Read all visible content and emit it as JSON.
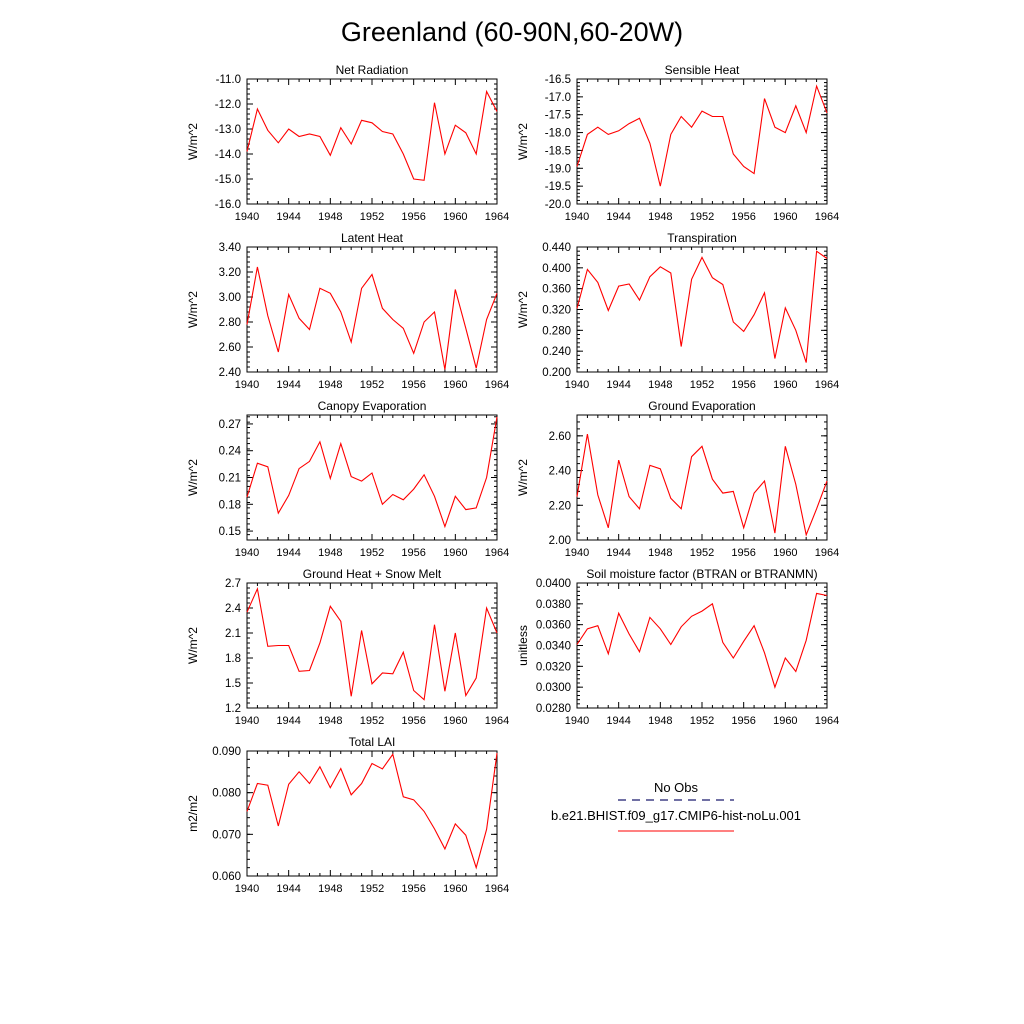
{
  "title": "Greenland (60-90N,60-20W)",
  "colors": {
    "series": "#ff0000",
    "obs": "#1a1a6e",
    "axis": "#000000",
    "background": "#ffffff"
  },
  "x_tick_labels": [
    "1940",
    "1944",
    "1948",
    "1952",
    "1956",
    "1960",
    "1964"
  ],
  "legend": {
    "obs_label": "No Obs",
    "model_label": "b.e21.BHIST.f09_g17.CMIP6-hist-noLu.001"
  },
  "chart_data": [
    {
      "type": "line",
      "title": "Net Radiation",
      "ylabel": "W/m^2",
      "xlim": [
        1940,
        1964
      ],
      "ylim": [
        -16.0,
        -11.0
      ],
      "ytick_labels": [
        "-16.0",
        "-15.0",
        "-14.0",
        "-13.0",
        "-12.0",
        "-11.0"
      ],
      "ytick_values": [
        -16.0,
        -15.0,
        -14.0,
        -13.0,
        -12.0,
        -11.0
      ],
      "series": [
        {
          "x": [
            1940,
            1941,
            1942,
            1943,
            1944,
            1945,
            1946,
            1947,
            1948,
            1949,
            1950,
            1951,
            1952,
            1953,
            1954,
            1955,
            1956,
            1957,
            1958,
            1959,
            1960,
            1961,
            1962,
            1963,
            1964
          ],
          "values": [
            -13.9,
            -12.2,
            -13.05,
            -13.55,
            -13.0,
            -13.3,
            -13.2,
            -13.3,
            -14.05,
            -12.95,
            -13.6,
            -12.65,
            -12.75,
            -13.1,
            -13.2,
            -14.0,
            -15.0,
            -15.05,
            -11.95,
            -14.0,
            -12.85,
            -13.15,
            -14.0,
            -11.5,
            -12.3
          ]
        }
      ]
    },
    {
      "type": "line",
      "title": "Sensible Heat",
      "ylabel": "W/m^2",
      "xlim": [
        1940,
        1964
      ],
      "ylim": [
        -20.0,
        -16.5
      ],
      "ytick_labels": [
        "-20.0",
        "-19.5",
        "-19.0",
        "-18.5",
        "-18.0",
        "-17.5",
        "-17.0",
        "-16.5"
      ],
      "ytick_values": [
        -20.0,
        -19.5,
        -19.0,
        -18.5,
        -18.0,
        -17.5,
        -17.0,
        -16.5
      ],
      "series": [
        {
          "x": [
            1940,
            1941,
            1942,
            1943,
            1944,
            1945,
            1946,
            1947,
            1948,
            1949,
            1950,
            1951,
            1952,
            1953,
            1954,
            1955,
            1956,
            1957,
            1958,
            1959,
            1960,
            1961,
            1962,
            1963,
            1964
          ],
          "values": [
            -18.95,
            -18.05,
            -17.85,
            -18.05,
            -17.95,
            -17.75,
            -17.6,
            -18.3,
            -19.5,
            -18.05,
            -17.55,
            -17.85,
            -17.4,
            -17.55,
            -17.55,
            -18.6,
            -18.95,
            -19.15,
            -17.05,
            -17.85,
            -18.0,
            -17.25,
            -18.0,
            -16.7,
            -17.45
          ]
        }
      ]
    },
    {
      "type": "line",
      "title": "Latent Heat",
      "ylabel": "W/m^2",
      "xlim": [
        1940,
        1964
      ],
      "ylim": [
        2.4,
        3.4
      ],
      "ytick_labels": [
        "2.40",
        "2.60",
        "2.80",
        "3.00",
        "3.20",
        "3.40"
      ],
      "ytick_values": [
        2.4,
        2.6,
        2.8,
        3.0,
        3.2,
        3.4
      ],
      "series": [
        {
          "x": [
            1940,
            1941,
            1942,
            1943,
            1944,
            1945,
            1946,
            1947,
            1948,
            1949,
            1950,
            1951,
            1952,
            1953,
            1954,
            1955,
            1956,
            1957,
            1958,
            1959,
            1960,
            1961,
            1962,
            1963,
            1964
          ],
          "values": [
            2.78,
            3.24,
            2.85,
            2.56,
            3.02,
            2.83,
            2.74,
            3.07,
            3.03,
            2.88,
            2.64,
            3.07,
            3.18,
            2.91,
            2.82,
            2.75,
            2.55,
            2.8,
            2.88,
            2.42,
            3.06,
            2.75,
            2.43,
            2.82,
            3.03
          ]
        }
      ]
    },
    {
      "type": "line",
      "title": "Transpiration",
      "ylabel": "W/m^2",
      "xlim": [
        1940,
        1964
      ],
      "ylim": [
        0.2,
        0.44
      ],
      "ytick_labels": [
        "0.200",
        "0.240",
        "0.280",
        "0.320",
        "0.360",
        "0.400",
        "0.440"
      ],
      "ytick_values": [
        0.2,
        0.24,
        0.28,
        0.32,
        0.36,
        0.4,
        0.44
      ],
      "series": [
        {
          "x": [
            1940,
            1941,
            1942,
            1943,
            1944,
            1945,
            1946,
            1947,
            1948,
            1949,
            1950,
            1951,
            1952,
            1953,
            1954,
            1955,
            1956,
            1957,
            1958,
            1959,
            1960,
            1961,
            1962,
            1963,
            1964
          ],
          "values": [
            0.322,
            0.397,
            0.372,
            0.318,
            0.365,
            0.369,
            0.338,
            0.383,
            0.402,
            0.39,
            0.249,
            0.378,
            0.42,
            0.381,
            0.368,
            0.296,
            0.278,
            0.31,
            0.352,
            0.226,
            0.323,
            0.28,
            0.218,
            0.432,
            0.418
          ]
        }
      ]
    },
    {
      "type": "line",
      "title": "Canopy Evaporation",
      "ylabel": "W/m^2",
      "xlim": [
        1940,
        1964
      ],
      "ylim": [
        0.14,
        0.28
      ],
      "ytick_labels": [
        "0.15",
        "0.18",
        "0.21",
        "0.24",
        "0.27"
      ],
      "ytick_values": [
        0.15,
        0.18,
        0.21,
        0.24,
        0.27
      ],
      "series": [
        {
          "x": [
            1940,
            1941,
            1942,
            1943,
            1944,
            1945,
            1946,
            1947,
            1948,
            1949,
            1950,
            1951,
            1952,
            1953,
            1954,
            1955,
            1956,
            1957,
            1958,
            1959,
            1960,
            1961,
            1962,
            1963,
            1964
          ],
          "values": [
            0.188,
            0.226,
            0.222,
            0.17,
            0.19,
            0.22,
            0.228,
            0.25,
            0.209,
            0.248,
            0.211,
            0.206,
            0.215,
            0.18,
            0.191,
            0.185,
            0.197,
            0.213,
            0.189,
            0.155,
            0.189,
            0.174,
            0.176,
            0.21,
            0.278
          ]
        }
      ]
    },
    {
      "type": "line",
      "title": "Ground Evaporation",
      "ylabel": "W/m^2",
      "xlim": [
        1940,
        1964
      ],
      "ylim": [
        2.0,
        2.72
      ],
      "ytick_labels": [
        "2.00",
        "2.20",
        "2.40",
        "2.60"
      ],
      "ytick_values": [
        2.0,
        2.2,
        2.4,
        2.6
      ],
      "series": [
        {
          "x": [
            1940,
            1941,
            1942,
            1943,
            1944,
            1945,
            1946,
            1947,
            1948,
            1949,
            1950,
            1951,
            1952,
            1953,
            1954,
            1955,
            1956,
            1957,
            1958,
            1959,
            1960,
            1961,
            1962,
            1963,
            1964
          ],
          "values": [
            2.25,
            2.61,
            2.26,
            2.07,
            2.46,
            2.25,
            2.18,
            2.43,
            2.41,
            2.24,
            2.18,
            2.48,
            2.54,
            2.35,
            2.27,
            2.28,
            2.07,
            2.27,
            2.34,
            2.04,
            2.54,
            2.32,
            2.03,
            2.18,
            2.34
          ]
        }
      ]
    },
    {
      "type": "line",
      "title": "Ground Heat + Snow Melt",
      "ylabel": "W/m^2",
      "xlim": [
        1940,
        1964
      ],
      "ylim": [
        1.2,
        2.7
      ],
      "ytick_labels": [
        "1.2",
        "1.5",
        "1.8",
        "2.1",
        "2.4",
        "2.7"
      ],
      "ytick_values": [
        1.2,
        1.5,
        1.8,
        2.1,
        2.4,
        2.7
      ],
      "series": [
        {
          "x": [
            1940,
            1941,
            1942,
            1943,
            1944,
            1945,
            1946,
            1947,
            1948,
            1949,
            1950,
            1951,
            1952,
            1953,
            1954,
            1955,
            1956,
            1957,
            1958,
            1959,
            1960,
            1961,
            1962,
            1963,
            1964
          ],
          "values": [
            2.35,
            2.63,
            1.94,
            1.95,
            1.95,
            1.64,
            1.65,
            1.98,
            2.42,
            2.24,
            1.34,
            2.13,
            1.49,
            1.62,
            1.61,
            1.87,
            1.41,
            1.3,
            2.2,
            1.4,
            2.1,
            1.35,
            1.56,
            2.4,
            2.1
          ]
        }
      ]
    },
    {
      "type": "line",
      "title": "Soil moisture factor (BTRAN or BTRANMN)",
      "ylabel": "unitless",
      "xlim": [
        1940,
        1964
      ],
      "ylim": [
        0.028,
        0.04
      ],
      "ytick_labels": [
        "0.0280",
        "0.0300",
        "0.0320",
        "0.0340",
        "0.0360",
        "0.0380",
        "0.0400"
      ],
      "ytick_values": [
        0.028,
        0.03,
        0.032,
        0.034,
        0.036,
        0.038,
        0.04
      ],
      "series": [
        {
          "x": [
            1940,
            1941,
            1942,
            1943,
            1944,
            1945,
            1946,
            1947,
            1948,
            1949,
            1950,
            1951,
            1952,
            1953,
            1954,
            1955,
            1956,
            1957,
            1958,
            1959,
            1960,
            1961,
            1962,
            1963,
            1964
          ],
          "values": [
            0.0341,
            0.0356,
            0.0359,
            0.0332,
            0.0371,
            0.0351,
            0.0334,
            0.0367,
            0.0356,
            0.0341,
            0.0358,
            0.0368,
            0.0373,
            0.038,
            0.0343,
            0.0328,
            0.0344,
            0.0359,
            0.0333,
            0.03,
            0.0328,
            0.0315,
            0.0345,
            0.039,
            0.0388
          ]
        }
      ]
    },
    {
      "type": "line",
      "title": "Total LAI",
      "ylabel": "m2/m2",
      "xlim": [
        1940,
        1964
      ],
      "ylim": [
        0.06,
        0.09
      ],
      "ytick_labels": [
        "0.060",
        "0.070",
        "0.080",
        "0.090"
      ],
      "ytick_values": [
        0.06,
        0.07,
        0.08,
        0.09
      ],
      "series": [
        {
          "x": [
            1940,
            1941,
            1942,
            1943,
            1944,
            1945,
            1946,
            1947,
            1948,
            1949,
            1950,
            1951,
            1952,
            1953,
            1954,
            1955,
            1956,
            1957,
            1958,
            1959,
            1960,
            1961,
            1962,
            1963,
            1964
          ],
          "values": [
            0.0755,
            0.0822,
            0.0818,
            0.072,
            0.082,
            0.085,
            0.0822,
            0.0862,
            0.0812,
            0.0858,
            0.0795,
            0.0822,
            0.087,
            0.0857,
            0.0892,
            0.079,
            0.0783,
            0.0755,
            0.0713,
            0.0665,
            0.0725,
            0.0698,
            0.062,
            0.0712,
            0.0895
          ]
        }
      ]
    }
  ]
}
